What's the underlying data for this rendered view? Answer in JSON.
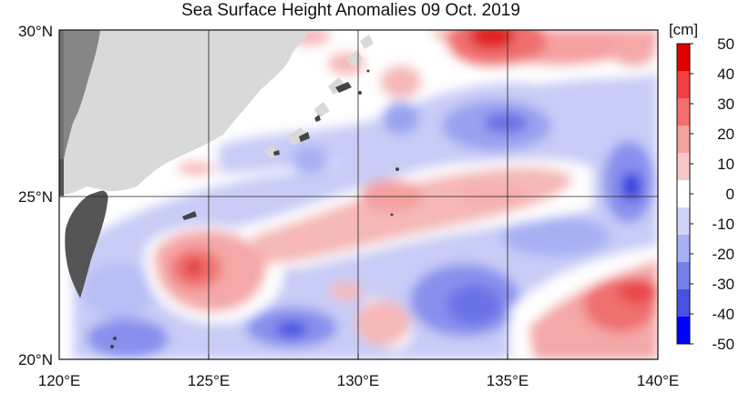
{
  "title": "Sea Surface Height Anomalies  09 Oct. 2019",
  "colorbar": {
    "unit": "[cm]",
    "ticks": [
      "50",
      "40",
      "30",
      "20",
      "10",
      "0",
      "-10",
      "-20",
      "-30",
      "-40",
      "-50"
    ],
    "colors": [
      "#e00000",
      "#f04040",
      "#f47070",
      "#f6a0a0",
      "#f8c8c8",
      "#ffffff",
      "#d0d4f8",
      "#a8b0f4",
      "#7880ea",
      "#4a52e0",
      "#0000ff"
    ]
  },
  "map": {
    "lat_labels": [
      "30°N",
      "25°N",
      "20°N"
    ],
    "lon_labels": [
      "120°E",
      "125°E",
      "130°E",
      "135°E",
      "140°E"
    ],
    "land_color": "#d9d9d9",
    "taiwan_color": "#555555"
  }
}
